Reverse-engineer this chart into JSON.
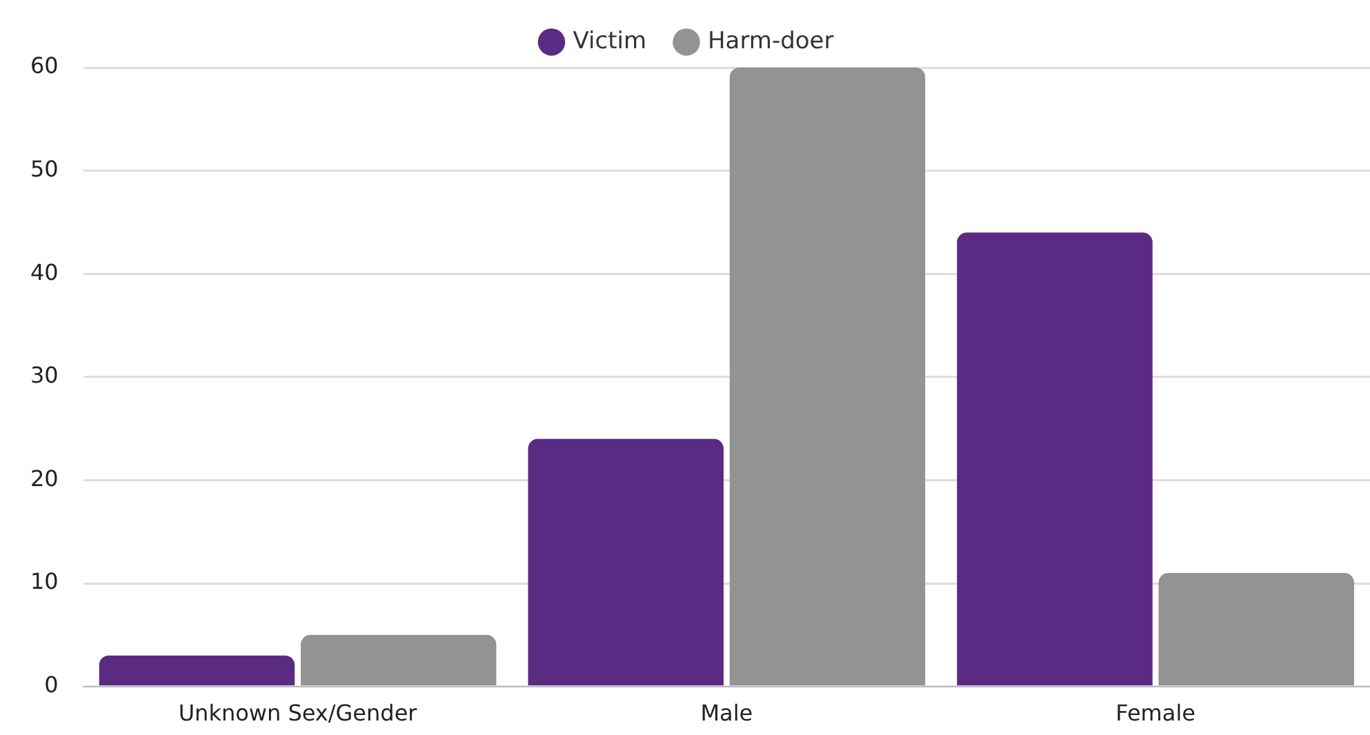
{
  "chart_data": {
    "type": "bar",
    "categories": [
      "Unknown Sex/Gender",
      "Male",
      "Female"
    ],
    "series": [
      {
        "name": "Victim",
        "color": "#5b2a82",
        "values": [
          3,
          24,
          44
        ]
      },
      {
        "name": "Harm-doer",
        "color": "#939396",
        "values": [
          5,
          60,
          11
        ]
      }
    ],
    "ylim": [
      0,
      60
    ],
    "yticks": [
      0,
      10,
      20,
      30,
      40,
      50,
      60
    ],
    "grid": "y",
    "legend": "top"
  }
}
